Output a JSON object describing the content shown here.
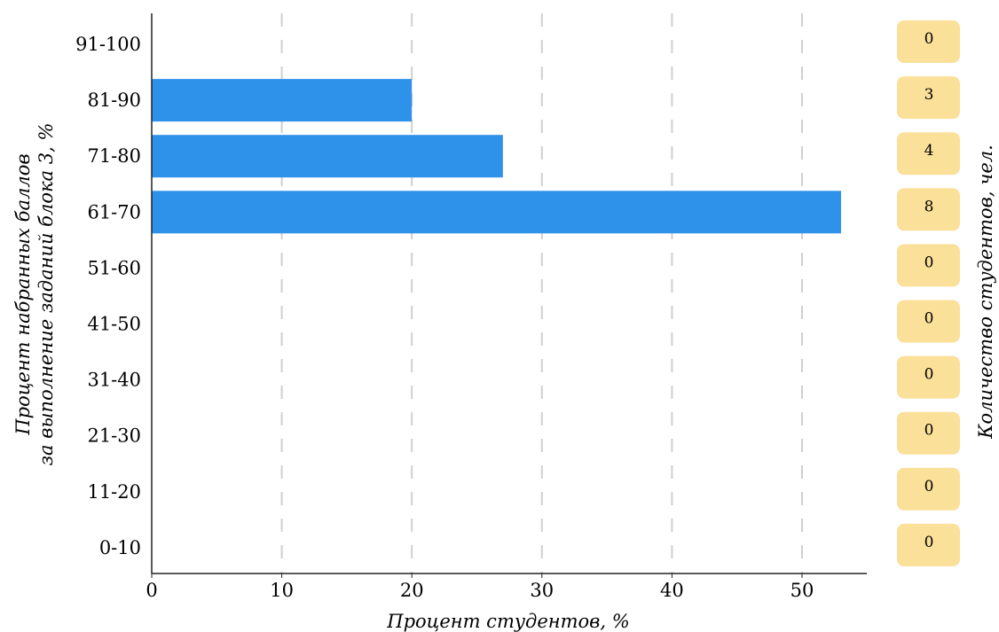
{
  "chart_data": {
    "type": "bar",
    "orientation": "horizontal",
    "categories": [
      "91-100",
      "81-90",
      "71-80",
      "61-70",
      "51-60",
      "41-50",
      "31-40",
      "21-30",
      "11-20",
      "0-10"
    ],
    "values": [
      0,
      20,
      27,
      53,
      0,
      0,
      0,
      0,
      0,
      0
    ],
    "counts": [
      "0",
      "3",
      "4",
      "8",
      "0",
      "0",
      "0",
      "0",
      "0",
      "0"
    ],
    "xlabel": "Процент студентов, %",
    "ylabel_line1": "Процент набранных баллов",
    "ylabel_line2": "за выполнение заданий блока 3, %",
    "right_label": "Количество студентов, чел.",
    "xlim": [
      0,
      55
    ],
    "xticks": [
      "0",
      "10",
      "20",
      "30",
      "40",
      "50"
    ],
    "grid": "vertical dashed",
    "colors": {
      "bar": "#2f92ea",
      "count_badge": "#fbe09a",
      "grid": "#cfcfcf"
    }
  }
}
